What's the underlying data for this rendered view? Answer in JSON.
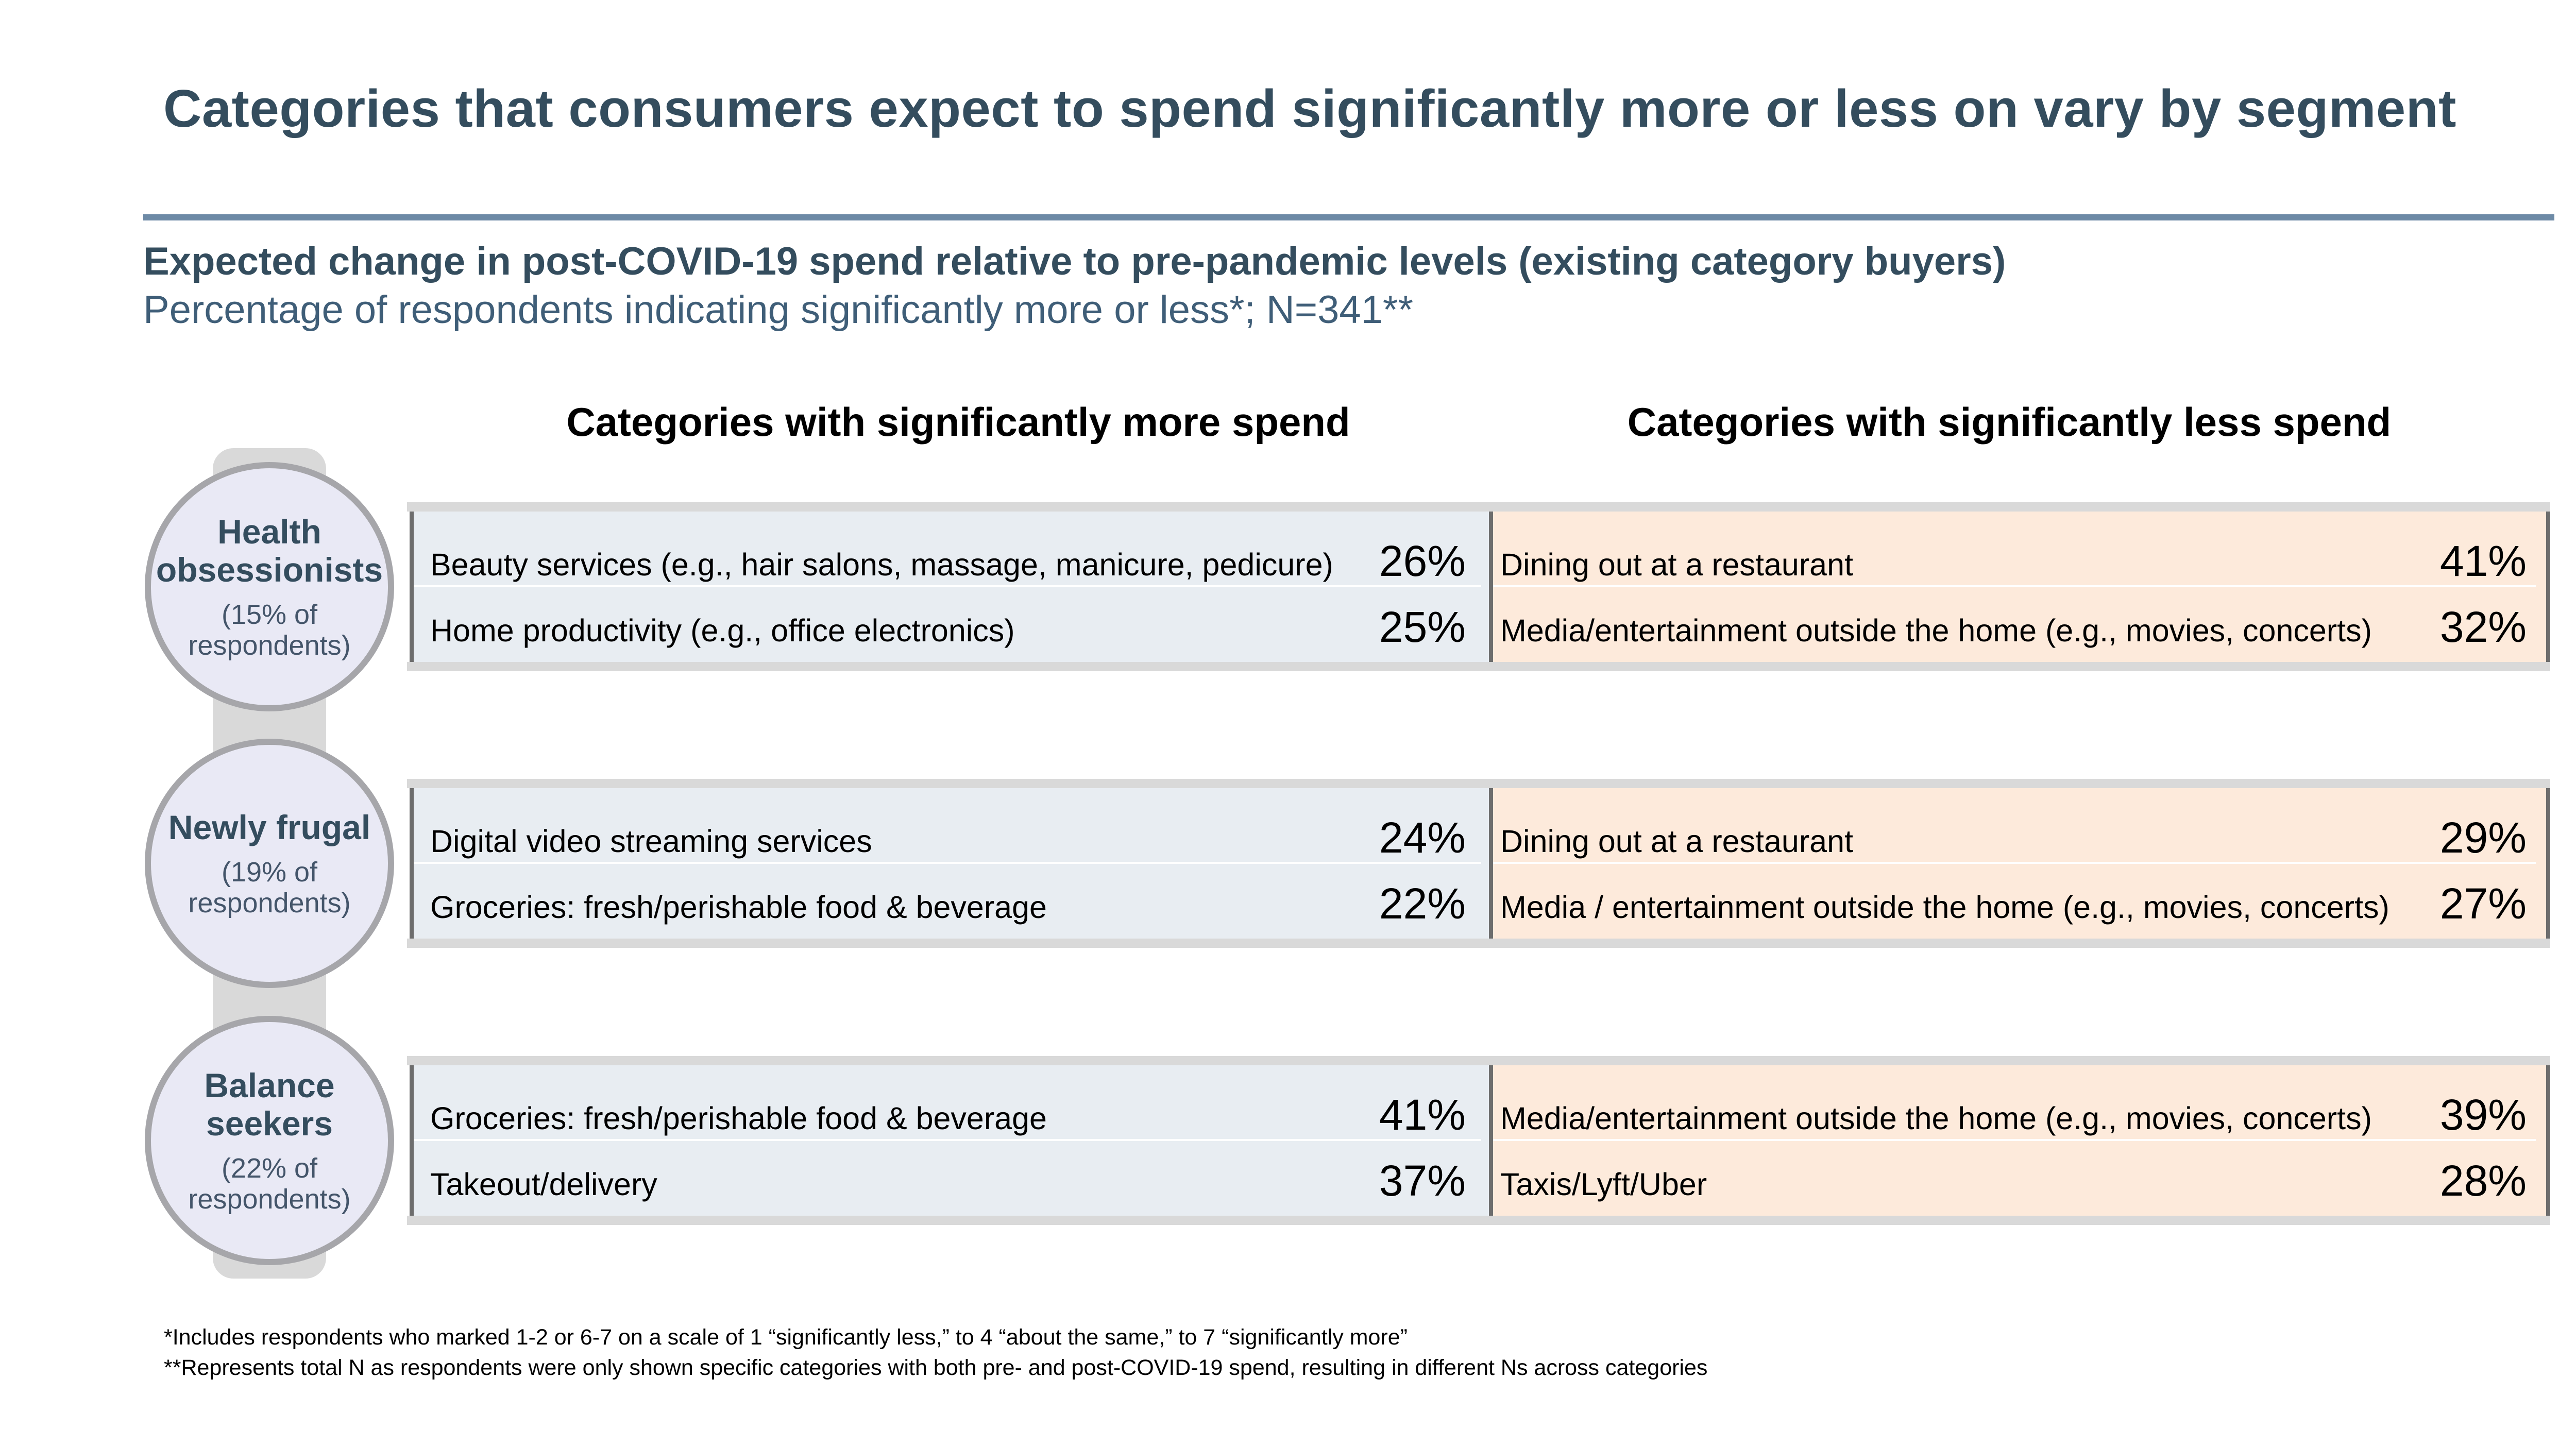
{
  "title": "Categories that consumers expect to spend significantly more or less on vary by segment",
  "subtitle": "Expected change in post-COVID-19 spend relative to pre-pandemic levels (existing category buyers)",
  "subsubtitle": "Percentage of respondents indicating significantly more or less*; N=341**",
  "columns": {
    "more": "Categories with significantly more spend",
    "less": "Categories with significantly less spend"
  },
  "colors": {
    "more_panel": "#e8edf2",
    "less_panel": "#fdeadb",
    "title": "#344d5e",
    "rule": "#6d8aa6"
  },
  "chart_data": {
    "type": "table",
    "segments": [
      {
        "name": "Health obsessionists",
        "share": "(15% of respondents)",
        "more": [
          {
            "label": "Beauty services (e.g., hair salons, massage, manicure, pedicure)",
            "value": 26,
            "display": "26%"
          },
          {
            "label": "Home productivity (e.g., office electronics)",
            "value": 25,
            "display": "25%"
          }
        ],
        "less": [
          {
            "label": "Dining out at a restaurant",
            "value": 41,
            "display": "41%"
          },
          {
            "label": "Media/entertainment outside the home (e.g., movies, concerts)",
            "value": 32,
            "display": "32%"
          }
        ]
      },
      {
        "name": "Newly frugal",
        "share": "(19% of respondents)",
        "more": [
          {
            "label": "Digital video streaming services",
            "value": 24,
            "display": "24%"
          },
          {
            "label": "Groceries: fresh/perishable food & beverage",
            "value": 22,
            "display": "22%"
          }
        ],
        "less": [
          {
            "label": "Dining out at a restaurant",
            "value": 29,
            "display": "29%"
          },
          {
            "label": "Media / entertainment outside the home (e.g., movies, concerts)",
            "value": 27,
            "display": "27%"
          }
        ]
      },
      {
        "name": "Balance seekers",
        "share": "(22% of respondents)",
        "more": [
          {
            "label": "Groceries: fresh/perishable food & beverage",
            "value": 41,
            "display": "41%"
          },
          {
            "label": "Takeout/delivery",
            "value": 37,
            "display": "37%"
          }
        ],
        "less": [
          {
            "label": "Media/entertainment outside the home (e.g., movies, concerts)",
            "value": 39,
            "display": "39%"
          },
          {
            "label": "Taxis/Lyft/Uber",
            "value": 28,
            "display": "28%"
          }
        ]
      }
    ]
  },
  "footnotes": [
    "*Includes respondents who marked 1-2 or 6-7 on a scale of 1 “significantly less,” to 4 “about the same,” to 7 “significantly more”",
    "**Represents total N as respondents were only shown specific categories with both pre- and post-COVID-19 spend, resulting in different Ns across categories"
  ]
}
